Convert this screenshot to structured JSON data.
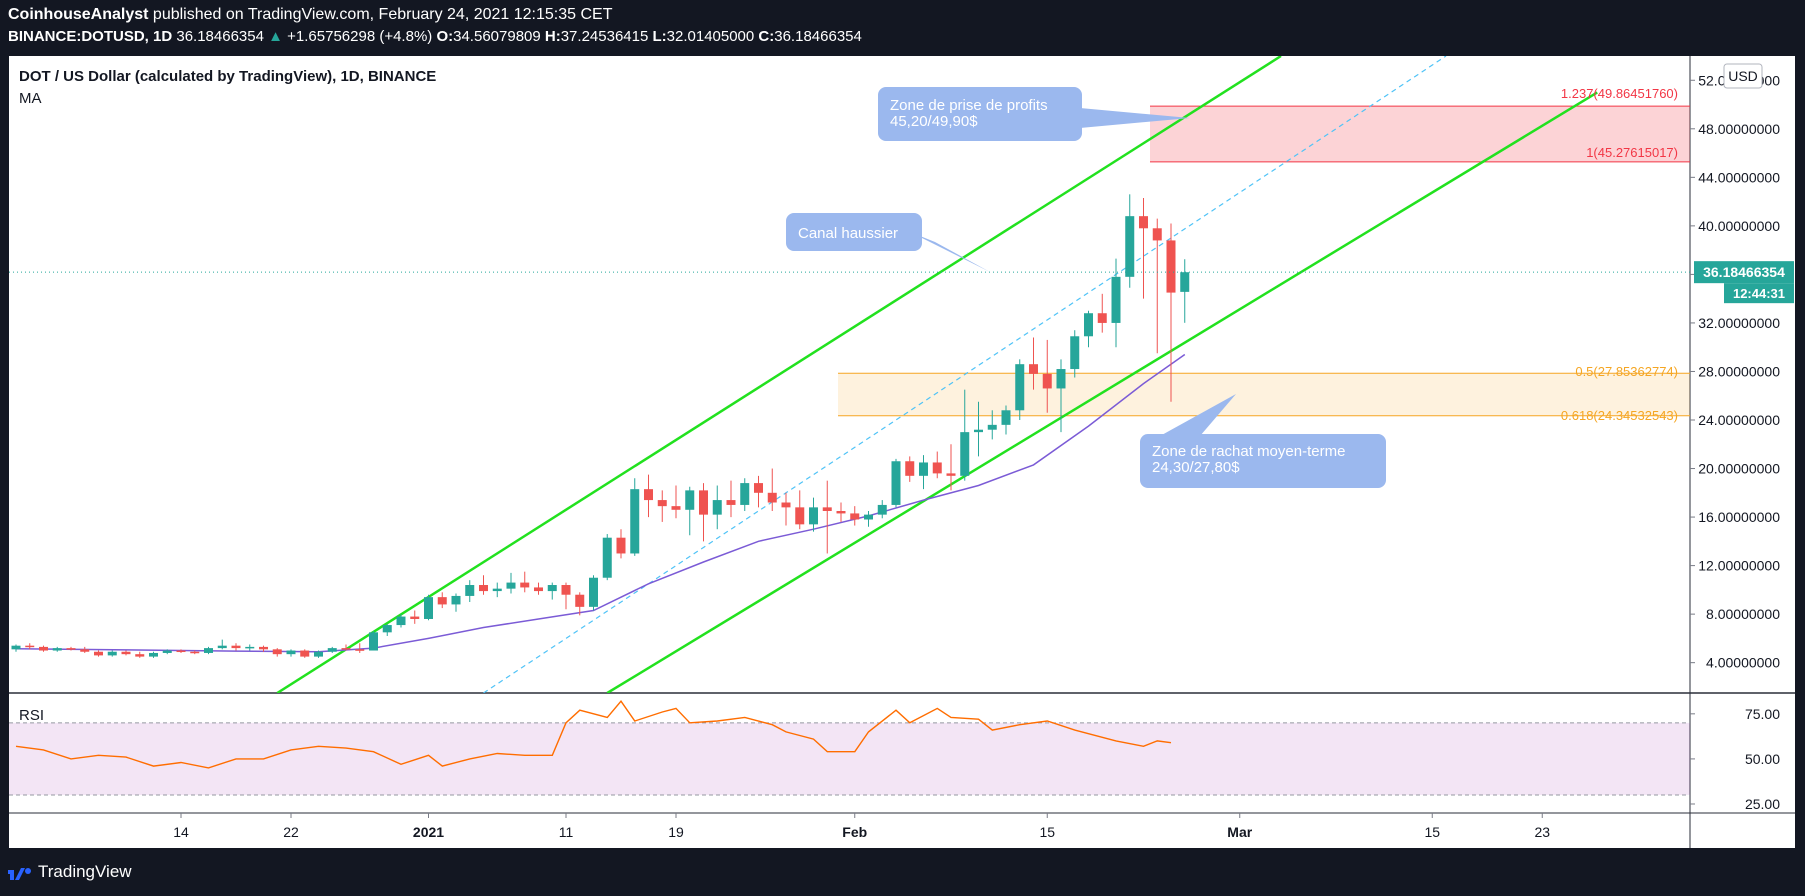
{
  "header": {
    "publisher": "CoinhouseAnalyst",
    "published_text": "published on TradingView.com, February 24, 2021 12:15:35 CET",
    "symbol": "BINANCE:DOTUSD, 1D",
    "last": "36.18466354",
    "change_arrow": "▲",
    "change": "+1.65756298 (+4.8%)",
    "o_label": "O:",
    "o_value": "34.56079809",
    "h_label": "H:",
    "h_value": "37.24536415",
    "l_label": "L:",
    "l_value": "32.01405000",
    "c_label": "C:",
    "c_value": "36.18466354"
  },
  "chart_title": "DOT / US Dollar (calculated by TradingView), 1D, BINANCE",
  "ma_label": "MA",
  "currency_label": "USD",
  "price_tag": "36.18466354",
  "countdown_tag": "12:44:31",
  "rsi_label": "RSI",
  "brand_text": "TradingView",
  "colors": {
    "background": "#131722",
    "up": "#26a69a",
    "down": "#ef5350",
    "channel": "#22e11f",
    "ma": "#7b5bd6",
    "rsi": "#ff6d00",
    "fib_red": "#f23645",
    "fib_orange": "#f5a623",
    "callout": "#9bb8ee"
  },
  "annotations": {
    "profit_zone_line1": "Zone de prise de profits",
    "profit_zone_line2": "45,20/49,90$",
    "channel_label": "Canal haussier",
    "buy_zone_line1": "Zone de rachat moyen-terme",
    "buy_zone_line2": "24,30/27,80$"
  },
  "fib_labels": {
    "f1237": "1.237(49.86451760)",
    "f1": "1(45.27615017)",
    "f05": "0.5(27.85362774)",
    "f0618": "0.618(24.34532543)"
  },
  "chart_data": {
    "type": "candlestick",
    "y_axis_ticks": [
      "52.00000000",
      "48.00000000",
      "44.00000000",
      "40.00000000",
      "36.00000000",
      "32.00000000",
      "28.00000000",
      "24.00000000",
      "20.00000000",
      "16.00000000",
      "12.00000000",
      "8.00000000",
      "4.00000000"
    ],
    "y_ticks_values": [
      52,
      48,
      44,
      40,
      36,
      32,
      28,
      24,
      20,
      16,
      12,
      8,
      4
    ],
    "ylim": [
      1.5,
      54
    ],
    "x_axis_ticks": [
      {
        "label": "14",
        "date": "2020-12-14"
      },
      {
        "label": "22",
        "date": "2020-12-22"
      },
      {
        "label": "2021",
        "date": "2021-01-01"
      },
      {
        "label": "11",
        "date": "2021-01-11"
      },
      {
        "label": "19",
        "date": "2021-01-19"
      },
      {
        "label": "Feb",
        "date": "2021-02-01"
      },
      {
        "label": "15",
        "date": "2021-02-15"
      },
      {
        "label": "Mar",
        "date": "2021-03-01"
      },
      {
        "label": "15",
        "date": "2021-03-15"
      },
      {
        "label": "23",
        "date": "2021-03-23"
      }
    ],
    "candles": [
      {
        "date": "2020-12-02",
        "o": 5.1,
        "h": 5.5,
        "l": 4.9,
        "c": 5.4
      },
      {
        "date": "2020-12-03",
        "o": 5.4,
        "h": 5.6,
        "l": 5.1,
        "c": 5.3
      },
      {
        "date": "2020-12-04",
        "o": 5.3,
        "h": 5.4,
        "l": 4.9,
        "c": 5.0
      },
      {
        "date": "2020-12-05",
        "o": 5.0,
        "h": 5.3,
        "l": 4.9,
        "c": 5.2
      },
      {
        "date": "2020-12-06",
        "o": 5.2,
        "h": 5.3,
        "l": 5.0,
        "c": 5.1
      },
      {
        "date": "2020-12-07",
        "o": 5.1,
        "h": 5.3,
        "l": 4.8,
        "c": 4.9
      },
      {
        "date": "2020-12-08",
        "o": 4.9,
        "h": 5.0,
        "l": 4.5,
        "c": 4.6
      },
      {
        "date": "2020-12-09",
        "o": 4.6,
        "h": 5.0,
        "l": 4.5,
        "c": 4.9
      },
      {
        "date": "2020-12-10",
        "o": 4.9,
        "h": 5.0,
        "l": 4.6,
        "c": 4.7
      },
      {
        "date": "2020-12-11",
        "o": 4.7,
        "h": 4.9,
        "l": 4.4,
        "c": 4.5
      },
      {
        "date": "2020-12-12",
        "o": 4.5,
        "h": 4.9,
        "l": 4.4,
        "c": 4.8
      },
      {
        "date": "2020-12-13",
        "o": 4.8,
        "h": 5.1,
        "l": 4.7,
        "c": 5.0
      },
      {
        "date": "2020-12-14",
        "o": 5.0,
        "h": 5.1,
        "l": 4.8,
        "c": 4.9
      },
      {
        "date": "2020-12-15",
        "o": 4.9,
        "h": 5.0,
        "l": 4.7,
        "c": 4.8
      },
      {
        "date": "2020-12-16",
        "o": 4.8,
        "h": 5.3,
        "l": 4.7,
        "c": 5.2
      },
      {
        "date": "2020-12-17",
        "o": 5.2,
        "h": 5.9,
        "l": 5.1,
        "c": 5.4
      },
      {
        "date": "2020-12-18",
        "o": 5.4,
        "h": 5.6,
        "l": 5.0,
        "c": 5.2
      },
      {
        "date": "2020-12-19",
        "o": 5.2,
        "h": 5.5,
        "l": 5.0,
        "c": 5.3
      },
      {
        "date": "2020-12-20",
        "o": 5.3,
        "h": 5.4,
        "l": 4.9,
        "c": 5.1
      },
      {
        "date": "2020-12-21",
        "o": 5.1,
        "h": 5.2,
        "l": 4.5,
        "c": 4.7
      },
      {
        "date": "2020-12-22",
        "o": 4.7,
        "h": 5.1,
        "l": 4.5,
        "c": 5.0
      },
      {
        "date": "2020-12-23",
        "o": 5.0,
        "h": 5.1,
        "l": 4.4,
        "c": 4.5
      },
      {
        "date": "2020-12-24",
        "o": 4.5,
        "h": 5.0,
        "l": 4.4,
        "c": 4.9
      },
      {
        "date": "2020-12-25",
        "o": 4.9,
        "h": 5.3,
        "l": 4.8,
        "c": 5.2
      },
      {
        "date": "2020-12-26",
        "o": 5.2,
        "h": 5.5,
        "l": 5.0,
        "c": 5.1
      },
      {
        "date": "2020-12-27",
        "o": 5.1,
        "h": 5.6,
        "l": 4.8,
        "c": 5.0
      },
      {
        "date": "2020-12-28",
        "o": 5.0,
        "h": 6.6,
        "l": 5.0,
        "c": 6.5
      },
      {
        "date": "2020-12-29",
        "o": 6.5,
        "h": 7.2,
        "l": 6.2,
        "c": 7.1
      },
      {
        "date": "2020-12-30",
        "o": 7.1,
        "h": 8.0,
        "l": 6.9,
        "c": 7.8
      },
      {
        "date": "2020-12-31",
        "o": 7.8,
        "h": 8.3,
        "l": 7.2,
        "c": 7.6
      },
      {
        "date": "2021-01-01",
        "o": 7.6,
        "h": 9.6,
        "l": 7.5,
        "c": 9.4
      },
      {
        "date": "2021-01-02",
        "o": 9.4,
        "h": 9.8,
        "l": 8.5,
        "c": 8.8
      },
      {
        "date": "2021-01-03",
        "o": 8.8,
        "h": 9.7,
        "l": 8.2,
        "c": 9.5
      },
      {
        "date": "2021-01-04",
        "o": 9.5,
        "h": 10.8,
        "l": 9.0,
        "c": 10.4
      },
      {
        "date": "2021-01-05",
        "o": 10.4,
        "h": 11.2,
        "l": 9.6,
        "c": 9.9
      },
      {
        "date": "2021-01-06",
        "o": 9.9,
        "h": 10.6,
        "l": 9.4,
        "c": 10.1
      },
      {
        "date": "2021-01-07",
        "o": 10.1,
        "h": 11.4,
        "l": 9.7,
        "c": 10.6
      },
      {
        "date": "2021-01-08",
        "o": 10.6,
        "h": 11.5,
        "l": 9.8,
        "c": 10.2
      },
      {
        "date": "2021-01-09",
        "o": 10.2,
        "h": 10.6,
        "l": 9.6,
        "c": 9.9
      },
      {
        "date": "2021-01-10",
        "o": 9.9,
        "h": 10.6,
        "l": 9.2,
        "c": 10.4
      },
      {
        "date": "2021-01-11",
        "o": 10.4,
        "h": 10.6,
        "l": 8.4,
        "c": 9.6
      },
      {
        "date": "2021-01-12",
        "o": 9.6,
        "h": 9.8,
        "l": 7.9,
        "c": 8.6
      },
      {
        "date": "2021-01-13",
        "o": 8.6,
        "h": 11.2,
        "l": 8.3,
        "c": 11.0
      },
      {
        "date": "2021-01-14",
        "o": 11.0,
        "h": 14.6,
        "l": 10.8,
        "c": 14.3
      },
      {
        "date": "2021-01-15",
        "o": 14.3,
        "h": 15.0,
        "l": 12.6,
        "c": 13.0
      },
      {
        "date": "2021-01-16",
        "o": 13.0,
        "h": 19.2,
        "l": 12.8,
        "c": 18.3
      },
      {
        "date": "2021-01-17",
        "o": 18.3,
        "h": 19.5,
        "l": 16.0,
        "c": 17.4
      },
      {
        "date": "2021-01-18",
        "o": 17.4,
        "h": 18.2,
        "l": 15.6,
        "c": 16.9
      },
      {
        "date": "2021-01-19",
        "o": 16.9,
        "h": 18.6,
        "l": 15.9,
        "c": 16.6
      },
      {
        "date": "2021-01-20",
        "o": 16.6,
        "h": 18.5,
        "l": 14.5,
        "c": 18.2
      },
      {
        "date": "2021-01-21",
        "o": 18.2,
        "h": 18.8,
        "l": 14.0,
        "c": 16.2
      },
      {
        "date": "2021-01-22",
        "o": 16.2,
        "h": 18.6,
        "l": 15.0,
        "c": 17.4
      },
      {
        "date": "2021-01-23",
        "o": 17.4,
        "h": 19.0,
        "l": 16.0,
        "c": 17.0
      },
      {
        "date": "2021-01-24",
        "o": 17.0,
        "h": 19.2,
        "l": 16.5,
        "c": 18.8
      },
      {
        "date": "2021-01-25",
        "o": 18.8,
        "h": 19.4,
        "l": 16.8,
        "c": 18.0
      },
      {
        "date": "2021-01-26",
        "o": 18.0,
        "h": 20.0,
        "l": 16.5,
        "c": 17.2
      },
      {
        "date": "2021-01-27",
        "o": 17.2,
        "h": 18.0,
        "l": 15.3,
        "c": 16.8
      },
      {
        "date": "2021-01-28",
        "o": 16.8,
        "h": 18.2,
        "l": 15.0,
        "c": 15.4
      },
      {
        "date": "2021-01-29",
        "o": 15.4,
        "h": 17.6,
        "l": 14.8,
        "c": 16.8
      },
      {
        "date": "2021-01-30",
        "o": 16.8,
        "h": 19.0,
        "l": 13.0,
        "c": 16.5
      },
      {
        "date": "2021-01-31",
        "o": 16.5,
        "h": 17.2,
        "l": 15.6,
        "c": 16.3
      },
      {
        "date": "2021-02-01",
        "o": 16.3,
        "h": 16.9,
        "l": 15.3,
        "c": 15.8
      },
      {
        "date": "2021-02-02",
        "o": 15.8,
        "h": 16.5,
        "l": 15.2,
        "c": 16.2
      },
      {
        "date": "2021-02-03",
        "o": 16.2,
        "h": 17.4,
        "l": 15.9,
        "c": 17.0
      },
      {
        "date": "2021-02-04",
        "o": 17.0,
        "h": 20.8,
        "l": 16.8,
        "c": 20.6
      },
      {
        "date": "2021-02-05",
        "o": 20.6,
        "h": 21.0,
        "l": 18.9,
        "c": 19.4
      },
      {
        "date": "2021-02-06",
        "o": 19.4,
        "h": 21.1,
        "l": 18.3,
        "c": 20.5
      },
      {
        "date": "2021-02-07",
        "o": 20.5,
        "h": 21.4,
        "l": 19.2,
        "c": 19.6
      },
      {
        "date": "2021-02-08",
        "o": 19.6,
        "h": 22.0,
        "l": 18.2,
        "c": 19.4
      },
      {
        "date": "2021-02-09",
        "o": 19.4,
        "h": 26.5,
        "l": 19.0,
        "c": 23.0
      },
      {
        "date": "2021-02-10",
        "o": 23.0,
        "h": 25.5,
        "l": 21.0,
        "c": 23.2
      },
      {
        "date": "2021-02-11",
        "o": 23.2,
        "h": 24.8,
        "l": 22.4,
        "c": 23.6
      },
      {
        "date": "2021-02-12",
        "o": 23.6,
        "h": 25.2,
        "l": 22.8,
        "c": 24.8
      },
      {
        "date": "2021-02-13",
        "o": 24.8,
        "h": 29.0,
        "l": 24.0,
        "c": 28.6
      },
      {
        "date": "2021-02-14",
        "o": 28.6,
        "h": 30.8,
        "l": 26.5,
        "c": 27.8
      },
      {
        "date": "2021-02-15",
        "o": 27.8,
        "h": 30.6,
        "l": 24.6,
        "c": 26.6
      },
      {
        "date": "2021-02-16",
        "o": 26.6,
        "h": 29.0,
        "l": 23.0,
        "c": 28.2
      },
      {
        "date": "2021-02-17",
        "o": 28.2,
        "h": 31.4,
        "l": 27.5,
        "c": 30.9
      },
      {
        "date": "2021-02-18",
        "o": 30.9,
        "h": 33.0,
        "l": 30.0,
        "c": 32.8
      },
      {
        "date": "2021-02-19",
        "o": 32.8,
        "h": 34.4,
        "l": 31.2,
        "c": 32.0
      },
      {
        "date": "2021-02-20",
        "o": 32.0,
        "h": 37.3,
        "l": 30.0,
        "c": 35.8
      },
      {
        "date": "2021-02-21",
        "o": 35.8,
        "h": 42.6,
        "l": 34.9,
        "c": 40.8
      },
      {
        "date": "2021-02-22",
        "o": 40.8,
        "h": 42.3,
        "l": 34.0,
        "c": 39.8
      },
      {
        "date": "2021-02-23",
        "o": 39.8,
        "h": 40.6,
        "l": 29.5,
        "c": 38.8
      },
      {
        "date": "2021-02-24",
        "o": 38.8,
        "h": 40.2,
        "l": 25.5,
        "c": 34.5
      },
      {
        "date": "2021-02-25",
        "o": 34.56,
        "h": 37.25,
        "l": 32.01,
        "c": 36.18
      }
    ],
    "ma_series": {
      "name": "MA",
      "points": [
        {
          "date": "2020-12-02",
          "v": 5.15
        },
        {
          "date": "2020-12-10",
          "v": 5.05
        },
        {
          "date": "2020-12-18",
          "v": 4.95
        },
        {
          "date": "2020-12-24",
          "v": 4.9
        },
        {
          "date": "2020-12-28",
          "v": 5.2
        },
        {
          "date": "2021-01-01",
          "v": 6.0
        },
        {
          "date": "2021-01-05",
          "v": 6.9
        },
        {
          "date": "2021-01-09",
          "v": 7.6
        },
        {
          "date": "2021-01-13",
          "v": 8.3
        },
        {
          "date": "2021-01-17",
          "v": 10.5
        },
        {
          "date": "2021-01-21",
          "v": 12.3
        },
        {
          "date": "2021-01-25",
          "v": 14.0
        },
        {
          "date": "2021-01-29",
          "v": 15.0
        },
        {
          "date": "2021-02-02",
          "v": 16.1
        },
        {
          "date": "2021-02-06",
          "v": 17.4
        },
        {
          "date": "2021-02-10",
          "v": 18.6
        },
        {
          "date": "2021-02-14",
          "v": 20.3
        },
        {
          "date": "2021-02-18",
          "v": 23.5
        },
        {
          "date": "2021-02-22",
          "v": 27.0
        },
        {
          "date": "2021-02-25",
          "v": 29.4
        }
      ]
    },
    "channel_lines": [
      {
        "name": "upper",
        "points": [
          {
            "date": "2020-12-21",
            "v": 1.5
          },
          {
            "date": "2021-03-04",
            "v": 54.0
          }
        ]
      },
      {
        "name": "lower",
        "points": [
          {
            "date": "2021-01-14",
            "v": 1.5
          },
          {
            "date": "2021-03-27",
            "v": 51.0
          }
        ]
      },
      {
        "name": "mid",
        "points": [
          {
            "date": "2021-01-05",
            "v": 1.5
          },
          {
            "date": "2021-03-16",
            "v": 54.0
          }
        ]
      }
    ],
    "fib_zones": [
      {
        "from": 45.27615017,
        "to": 49.8645176,
        "color": "red"
      },
      {
        "from": 24.34532543,
        "to": 27.85362774,
        "color": "orange"
      }
    ],
    "last_price": 36.18466354,
    "rsi": {
      "ticks": [
        "75.00",
        "50.00",
        "25.00"
      ],
      "ticks_values": [
        75,
        50,
        25
      ],
      "band": [
        30,
        70
      ],
      "ylim": [
        20,
        86
      ],
      "values": [
        {
          "date": "2020-12-02",
          "v": 57
        },
        {
          "date": "2020-12-04",
          "v": 55
        },
        {
          "date": "2020-12-06",
          "v": 50
        },
        {
          "date": "2020-12-08",
          "v": 52
        },
        {
          "date": "2020-12-10",
          "v": 51
        },
        {
          "date": "2020-12-12",
          "v": 46
        },
        {
          "date": "2020-12-14",
          "v": 48
        },
        {
          "date": "2020-12-16",
          "v": 45
        },
        {
          "date": "2020-12-18",
          "v": 50
        },
        {
          "date": "2020-12-20",
          "v": 50
        },
        {
          "date": "2020-12-22",
          "v": 55
        },
        {
          "date": "2020-12-24",
          "v": 57
        },
        {
          "date": "2020-12-26",
          "v": 56
        },
        {
          "date": "2020-12-28",
          "v": 54
        },
        {
          "date": "2020-12-30",
          "v": 47
        },
        {
          "date": "2021-01-01",
          "v": 52
        },
        {
          "date": "2021-01-02",
          "v": 46
        },
        {
          "date": "2021-01-04",
          "v": 50
        },
        {
          "date": "2021-01-06",
          "v": 53
        },
        {
          "date": "2021-01-08",
          "v": 52
        },
        {
          "date": "2021-01-10",
          "v": 52
        },
        {
          "date": "2021-01-11",
          "v": 70
        },
        {
          "date": "2021-01-12",
          "v": 77
        },
        {
          "date": "2021-01-14",
          "v": 73
        },
        {
          "date": "2021-01-15",
          "v": 82
        },
        {
          "date": "2021-01-16",
          "v": 71
        },
        {
          "date": "2021-01-18",
          "v": 76
        },
        {
          "date": "2021-01-19",
          "v": 78
        },
        {
          "date": "2021-01-20",
          "v": 70
        },
        {
          "date": "2021-01-22",
          "v": 71
        },
        {
          "date": "2021-01-24",
          "v": 73
        },
        {
          "date": "2021-01-26",
          "v": 69
        },
        {
          "date": "2021-01-27",
          "v": 65
        },
        {
          "date": "2021-01-29",
          "v": 61
        },
        {
          "date": "2021-01-30",
          "v": 54
        },
        {
          "date": "2021-02-01",
          "v": 54
        },
        {
          "date": "2021-02-02",
          "v": 65
        },
        {
          "date": "2021-02-04",
          "v": 77
        },
        {
          "date": "2021-02-05",
          "v": 70
        },
        {
          "date": "2021-02-07",
          "v": 78
        },
        {
          "date": "2021-02-08",
          "v": 73
        },
        {
          "date": "2021-02-10",
          "v": 72
        },
        {
          "date": "2021-02-11",
          "v": 66
        },
        {
          "date": "2021-02-13",
          "v": 69
        },
        {
          "date": "2021-02-15",
          "v": 71
        },
        {
          "date": "2021-02-17",
          "v": 66
        },
        {
          "date": "2021-02-18",
          "v": 64
        },
        {
          "date": "2021-02-20",
          "v": 60
        },
        {
          "date": "2021-02-22",
          "v": 57
        },
        {
          "date": "2021-02-23",
          "v": 60
        },
        {
          "date": "2021-02-24",
          "v": 59
        }
      ]
    }
  }
}
